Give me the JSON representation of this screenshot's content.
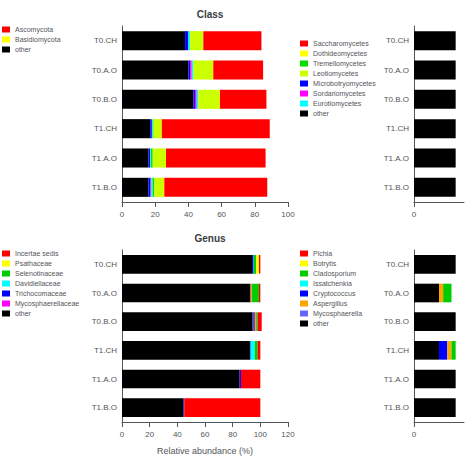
{
  "chart_data": [
    {
      "type": "bar",
      "orientation": "horizontal",
      "stacked": true,
      "grid": false,
      "title": "Class",
      "categories": [
        "T1.B.O",
        "T1.A.O",
        "T1.CH",
        "T0.B.O",
        "T0.A.O",
        "T0.CH"
      ],
      "xlim": [
        0,
        100
      ],
      "xticks": [
        0,
        20,
        40,
        60,
        80,
        100
      ],
      "series": [
        {
          "name": "other",
          "color": "#000000",
          "values": [
            16,
            16,
            17,
            43,
            40,
            38
          ]
        },
        {
          "name": "Microbotryomycetes",
          "color": "#0000FF",
          "values": [
            1,
            1,
            1,
            1,
            1,
            2
          ]
        },
        {
          "name": "Sordariomycetes",
          "color": "#FF00FF",
          "values": [
            0.5,
            0,
            0,
            1,
            1,
            0
          ]
        },
        {
          "name": "Eurotiomycetes",
          "color": "#00FFFF",
          "values": [
            1,
            0.5,
            0.5,
            1,
            1,
            1
          ]
        },
        {
          "name": "Tremellomycetes",
          "color": "#00DD00",
          "values": [
            1,
            1,
            0.5,
            0,
            0,
            0
          ]
        },
        {
          "name": "Leotiomycetes",
          "color": "#CCFF00",
          "values": [
            6,
            8,
            5,
            13,
            12,
            8
          ]
        },
        {
          "name": "Dothideomycetes",
          "color": "#FFFF00",
          "values": [
            0,
            0,
            0,
            0,
            0,
            0
          ]
        },
        {
          "name": "Saccharomycetes",
          "color": "#FF0000",
          "values": [
            62,
            60,
            65,
            28,
            30,
            35
          ]
        }
      ],
      "legend_items": [
        [
          {
            "label": "Ascomycota",
            "color": "#FF0000"
          },
          {
            "label": "Basidiomycota",
            "color": "#FFFF00"
          },
          {
            "label": "other",
            "color": "#000000"
          }
        ],
        [
          {
            "label": "Saccharomycetes",
            "color": "#FF0000"
          },
          {
            "label": "Dothideomycetes",
            "color": "#FFFF00"
          },
          {
            "label": "Tremellomycetes",
            "color": "#00DD00"
          },
          {
            "label": "Leotiomycetes",
            "color": "#CCFF00"
          },
          {
            "label": "Microbotryomycetes",
            "color": "#0000FF"
          },
          {
            "label": "Sordariomycetes",
            "color": "#FF00FF"
          },
          {
            "label": "Eurotiomycetes",
            "color": "#00FFFF"
          },
          {
            "label": "other",
            "color": "#000000"
          }
        ]
      ]
    },
    {
      "type": "bar",
      "orientation": "horizontal",
      "stacked": true,
      "grid": false,
      "title": "Genus",
      "xlabel": "Relative abundance (%)",
      "categories": [
        "T1.B.O",
        "T1.A.O",
        "T1.CH",
        "T0.B.O",
        "T0.A.O",
        "T0.CH"
      ],
      "xlim": [
        0,
        120
      ],
      "xticks": [
        0,
        20,
        40,
        60,
        80,
        100,
        120
      ],
      "series": [
        {
          "name": "other",
          "color": "#000000",
          "values": [
            44.5,
            85,
            92.5,
            94.5,
            92.5,
            94
          ]
        },
        {
          "name": "Mycosphaerella",
          "color": "#6666FF",
          "values": [
            0,
            0,
            0,
            0.5,
            0,
            0
          ]
        },
        {
          "name": "Cryptococcus",
          "color": "#0000FF",
          "values": [
            0.5,
            1,
            0.5,
            1,
            0.5,
            1
          ]
        },
        {
          "name": "Aspergillus",
          "color": "#FFA500",
          "values": [
            0,
            0,
            0,
            1,
            1,
            0
          ]
        },
        {
          "name": "Issatchenkia",
          "color": "#00FFFF",
          "values": [
            0,
            0,
            3,
            0,
            0,
            0
          ]
        },
        {
          "name": "Cladosporium",
          "color": "#00CC00",
          "values": [
            0,
            0,
            2,
            1,
            5,
            2
          ]
        },
        {
          "name": "Botrytis",
          "color": "#FFFF00",
          "values": [
            0,
            0,
            0,
            0,
            0,
            2
          ]
        },
        {
          "name": "Pichia",
          "color": "#FF0000",
          "values": [
            55,
            14,
            2,
            3,
            1,
            1
          ]
        }
      ],
      "legend_items": [
        [
          {
            "label": "Incertae sedis",
            "color": "#FF0000"
          },
          {
            "label": "Psathaceae",
            "color": "#FFFF00"
          },
          {
            "label": "Selenotinaceae",
            "color": "#00CC00"
          },
          {
            "label": "Davidiellaceae",
            "color": "#00FFFF"
          },
          {
            "label": "Trichocomaceae",
            "color": "#0000FF"
          },
          {
            "label": "Mycosphaerellaceae",
            "color": "#FF00FF"
          },
          {
            "label": "other",
            "color": "#000000"
          }
        ],
        [
          {
            "label": "Pichia",
            "color": "#FF0000"
          },
          {
            "label": "Botrytis",
            "color": "#FFFF00"
          },
          {
            "label": "Cladosporium",
            "color": "#00CC00"
          },
          {
            "label": "Issatchenkia",
            "color": "#00FFFF"
          },
          {
            "label": "Cryptococcus",
            "color": "#0000FF"
          },
          {
            "label": "Aspergillus",
            "color": "#FFA500"
          },
          {
            "label": "Mycosphaerella",
            "color": "#6666FF"
          },
          {
            "label": "other",
            "color": "#000000"
          }
        ]
      ]
    },
    {
      "type": "bar",
      "orientation": "horizontal",
      "stacked": true,
      "grid": false,
      "categories": [
        "T1.B.O",
        "T1.A.O",
        "T1.CH",
        "T0.B.O",
        "T0.A.O",
        "T0.CH"
      ],
      "xlim": [
        0,
        6
      ],
      "xticks": [
        0
      ],
      "series": [
        {
          "color": "#000000",
          "values": [
            5,
            5,
            5,
            5,
            5,
            5
          ]
        },
        {
          "color": "#FFFF00",
          "values": [
            0,
            0,
            0,
            0,
            0,
            0
          ]
        },
        {
          "color": "#FF0000",
          "values": [
            0,
            0,
            0,
            0,
            0,
            0
          ]
        }
      ]
    },
    {
      "type": "bar",
      "orientation": "horizontal",
      "stacked": true,
      "grid": false,
      "categories": [
        "T1.B.O",
        "T1.A.O",
        "T1.CH",
        "T0.B.O",
        "T0.A.O",
        "T0.CH"
      ],
      "xlim": [
        0,
        6
      ],
      "xticks": [
        0
      ],
      "series": [
        {
          "color": "#000000",
          "values": [
            5,
            5,
            3,
            5,
            3,
            5
          ]
        },
        {
          "color": "#0000FF",
          "values": [
            0,
            0,
            1,
            0,
            0,
            0
          ]
        },
        {
          "color": "#FFA500",
          "values": [
            0,
            0,
            0.5,
            0,
            0.5,
            0
          ]
        },
        {
          "color": "#00CC00",
          "values": [
            0,
            0,
            0.5,
            0,
            1,
            0
          ]
        },
        {
          "color": "#FF0000",
          "values": [
            0,
            0,
            0,
            0,
            0,
            0
          ]
        }
      ]
    }
  ]
}
